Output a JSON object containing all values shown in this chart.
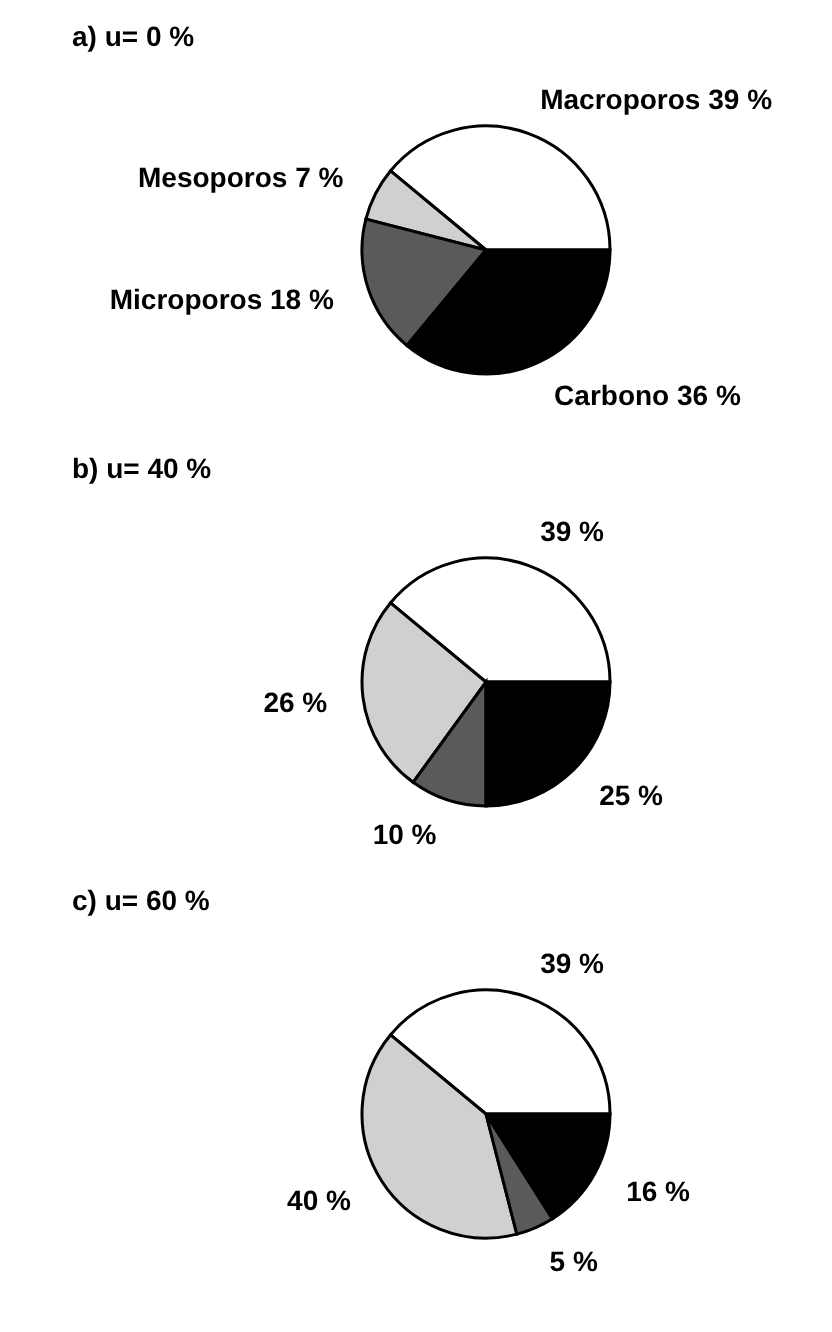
{
  "chart_data": [
    {
      "type": "pie",
      "title": "a) u= 0 %",
      "categories": [
        "Macroporos",
        "Mesoporos",
        "Microporos",
        "Carbono"
      ],
      "values": [
        39,
        7,
        18,
        36
      ],
      "value_labels": [
        "39 %",
        "7 %",
        "18 %",
        "36 %"
      ],
      "colors": [
        "#ffffff",
        "#d0d0d0",
        "#5a5a5a",
        "#000000"
      ]
    },
    {
      "type": "pie",
      "title": "b) u= 40 %",
      "categories": [
        null,
        null,
        null,
        null
      ],
      "values": [
        39,
        26,
        10,
        25
      ],
      "value_labels": [
        "39 %",
        "26 %",
        "10 %",
        "25 %"
      ],
      "colors": [
        "#ffffff",
        "#d0d0d0",
        "#5a5a5a",
        "#000000"
      ]
    },
    {
      "type": "pie",
      "title": "c) u= 60 %",
      "categories": [
        null,
        null,
        null,
        null
      ],
      "values": [
        39,
        40,
        5,
        16
      ],
      "value_labels": [
        "39 %",
        "40 %",
        "5 %",
        "16 %"
      ],
      "colors": [
        "#ffffff",
        "#d0d0d0",
        "#5a5a5a",
        "#000000"
      ]
    }
  ]
}
